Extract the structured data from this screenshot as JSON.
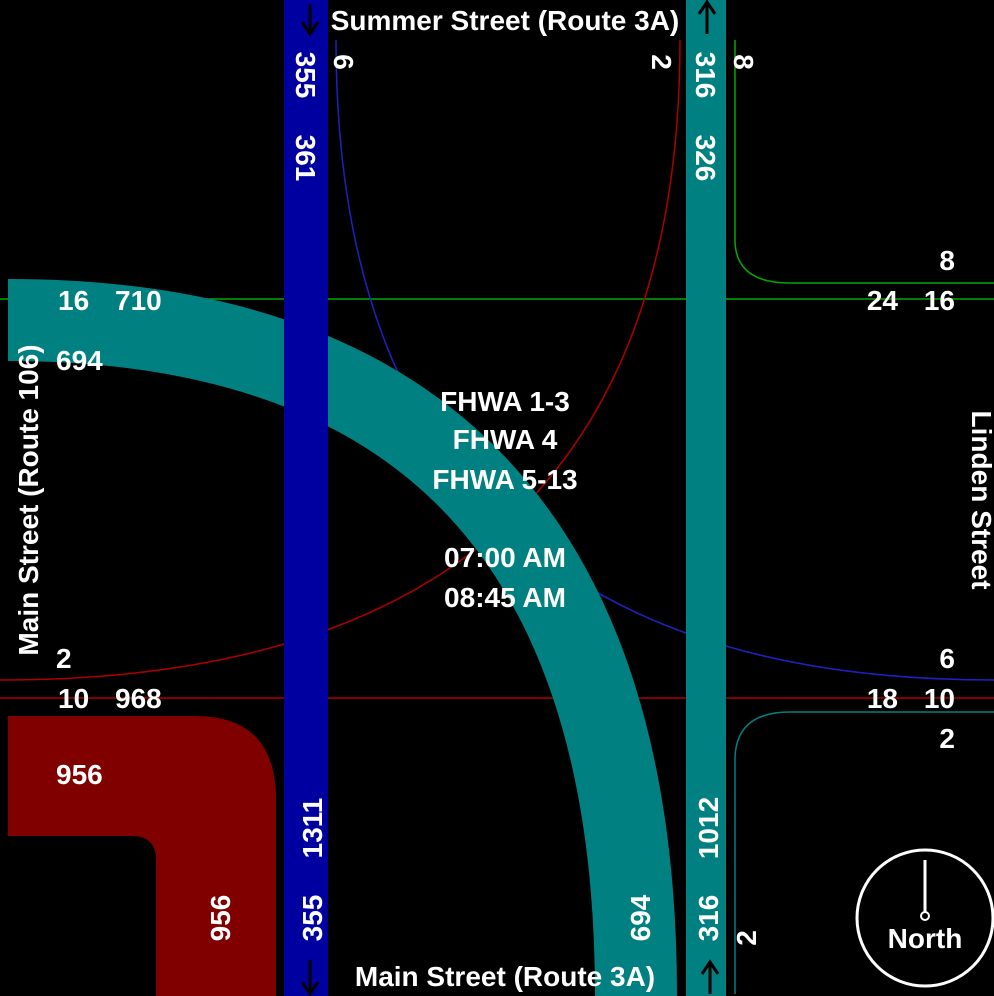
{
  "streets": {
    "north": "Summer Street (Route 3A)",
    "south": "Main Street (Route 3A)",
    "west": "Main Street (Route 106)",
    "east": "Linden Street"
  },
  "center_labels": {
    "line1": "FHWA 1-3",
    "line2": "FHWA 4",
    "line3": "FHWA 5-13",
    "time_start": "07:00 AM",
    "time_end": "08:45 AM"
  },
  "north_leg": {
    "out_flow": "355",
    "out_total": "361",
    "right_turn": "6",
    "left_small": "2",
    "in_flow": "316",
    "in_total": "326",
    "in_extra": "8"
  },
  "south_leg": {
    "through_total": "1311",
    "through": "355",
    "curve_flow": "694",
    "in_total": "1012",
    "in_flow": "316",
    "small": "2"
  },
  "west_leg": {
    "left_small": "16",
    "top_total": "710",
    "curve_in": "694",
    "bottom_small_upper": "2",
    "bottom_small": "10",
    "bottom_total": "968",
    "red_in": "956",
    "red_out": "956"
  },
  "east_leg": {
    "top_upper": "8",
    "top_a": "24",
    "top_b": "16",
    "bottom_upper": "6",
    "bottom_a": "18",
    "bottom_b": "10",
    "bottom_lower": "2"
  },
  "compass": {
    "label": "North"
  },
  "colors": {
    "teal": "#008080",
    "navy": "#0000a0",
    "maroon": "#800000",
    "green_line": "#00aa00",
    "red_line": "#aa0000",
    "blue_line": "#2020c0"
  }
}
